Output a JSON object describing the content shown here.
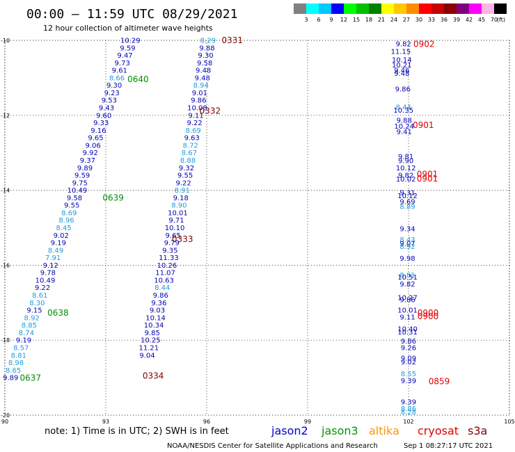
{
  "chart_data": {
    "type": "scatter",
    "title": "00:00 – 11:59 UTC 08/29/2021",
    "subtitle": "12 hour collection of altimeter wave heights",
    "xlim": [
      90,
      105
    ],
    "ylim": [
      -20,
      -10
    ],
    "x_ticks": [
      "90",
      "93",
      "96",
      "99",
      "102",
      "105"
    ],
    "y_ticks": [
      "-10",
      "-12",
      "-14",
      "-16",
      "-18",
      "-20"
    ],
    "colorbar": {
      "ticks": [
        "3",
        "6",
        "9",
        "12",
        "15",
        "18",
        "21",
        "24",
        "27",
        "30",
        "33",
        "36",
        "39",
        "42",
        "45",
        "70"
      ],
      "unit": "(ft)",
      "colors": [
        "#808080",
        "#00ffff",
        "#00c8ff",
        "#0000ff",
        "#00ff00",
        "#00c000",
        "#008000",
        "#ffff00",
        "#ffc800",
        "#ff8c00",
        "#ff0000",
        "#c80000",
        "#8b0000",
        "#800080",
        "#ff00ff",
        "#ffb4e6",
        "#000000"
      ]
    },
    "series": [
      {
        "name": "jason3",
        "color_low": "#1e9bdc",
        "color_high": "#0000b4",
        "passes": [
          {
            "label": "0640",
            "x": 93.96,
            "y": -11.03
          },
          {
            "label": "0639",
            "x": 93.22,
            "y": -14.19
          },
          {
            "label": "0638",
            "x": 91.58,
            "y": -17.26
          },
          {
            "label": "0637",
            "x": 90.76,
            "y": -19.0
          }
        ],
        "points": [
          [
            93.73,
            -10.0,
            "10.29"
          ],
          [
            93.65,
            -10.2,
            "9.59"
          ],
          [
            93.57,
            -10.4,
            "9.47"
          ],
          [
            93.49,
            -10.6,
            "9.73"
          ],
          [
            93.41,
            -10.8,
            "9.61"
          ],
          [
            93.33,
            -11.0,
            "8.66"
          ],
          [
            93.25,
            -11.2,
            "9.30"
          ],
          [
            93.18,
            -11.4,
            "9.23"
          ],
          [
            93.1,
            -11.6,
            "9.53"
          ],
          [
            93.02,
            -11.8,
            "9.43"
          ],
          [
            92.94,
            -12.0,
            "9.60"
          ],
          [
            92.86,
            -12.2,
            "9.33"
          ],
          [
            92.78,
            -12.4,
            "9.16"
          ],
          [
            92.7,
            -12.6,
            "9.65"
          ],
          [
            92.62,
            -12.8,
            "9.06"
          ],
          [
            92.54,
            -13.0,
            "9.92"
          ],
          [
            92.46,
            -13.2,
            "9.37"
          ],
          [
            92.38,
            -13.4,
            "9.89"
          ],
          [
            92.3,
            -13.6,
            "9.59"
          ],
          [
            92.23,
            -13.8,
            "9.75"
          ],
          [
            92.15,
            -14.0,
            "10.49"
          ],
          [
            92.07,
            -14.2,
            "9.58"
          ],
          [
            91.99,
            -14.4,
            "9.55"
          ],
          [
            91.91,
            -14.6,
            "8.69"
          ],
          [
            91.83,
            -14.8,
            "8.96"
          ],
          [
            91.75,
            -15.0,
            "8.45"
          ],
          [
            91.67,
            -15.2,
            "9.02"
          ],
          [
            91.59,
            -15.4,
            "9.19"
          ],
          [
            91.51,
            -15.6,
            "8.49"
          ],
          [
            91.43,
            -15.8,
            "7.91"
          ],
          [
            91.36,
            -16.0,
            "9.12"
          ],
          [
            91.28,
            -16.2,
            "9.78"
          ],
          [
            91.2,
            -16.4,
            "10.49"
          ],
          [
            91.12,
            -16.6,
            "9.22"
          ],
          [
            91.04,
            -16.8,
            "8.61"
          ],
          [
            90.96,
            -17.0,
            "8.30"
          ],
          [
            90.88,
            -17.2,
            "9.15"
          ],
          [
            90.8,
            -17.4,
            "8.92"
          ],
          [
            90.72,
            -17.6,
            "8.85"
          ],
          [
            90.64,
            -17.8,
            "8.74"
          ],
          [
            90.56,
            -18.0,
            "9.19"
          ],
          [
            90.48,
            -18.2,
            "8.57"
          ],
          [
            90.41,
            -18.4,
            "8.81"
          ],
          [
            90.33,
            -18.6,
            "8.98"
          ],
          [
            90.25,
            -18.8,
            "8.65"
          ],
          [
            90.17,
            -19.0,
            "9.89"
          ]
        ]
      },
      {
        "name": "cryosat",
        "color_low": "#1e9bdc",
        "color_high": "#0000b4",
        "passes": [
          {
            "label": "0331",
            "x": 96.76,
            "y": -9.99
          },
          {
            "label": "0332",
            "x": 96.1,
            "y": -11.87
          },
          {
            "label": "0333",
            "x": 95.28,
            "y": -15.3
          },
          {
            "label": "0334",
            "x": 94.41,
            "y": -18.94
          }
        ],
        "points": [
          [
            96.04,
            -10.0,
            "8.29"
          ],
          [
            96.01,
            -10.2,
            "9.88"
          ],
          [
            95.97,
            -10.4,
            "9.30"
          ],
          [
            95.94,
            -10.6,
            "9.58"
          ],
          [
            95.9,
            -10.8,
            "9.48"
          ],
          [
            95.87,
            -11.0,
            "9.48"
          ],
          [
            95.83,
            -11.2,
            "8.94"
          ],
          [
            95.79,
            -11.4,
            "9.01"
          ],
          [
            95.76,
            -11.6,
            "9.86"
          ],
          [
            95.72,
            -11.8,
            "10.08"
          ],
          [
            95.68,
            -12.0,
            "9.11"
          ],
          [
            95.64,
            -12.2,
            "9.22"
          ],
          [
            95.6,
            -12.4,
            "8.69"
          ],
          [
            95.56,
            -12.6,
            "9.63"
          ],
          [
            95.52,
            -12.8,
            "8.72"
          ],
          [
            95.48,
            -13.0,
            "8.67"
          ],
          [
            95.44,
            -13.2,
            "8.88"
          ],
          [
            95.4,
            -13.4,
            "9.32"
          ],
          [
            95.36,
            -13.6,
            "9.55"
          ],
          [
            95.31,
            -13.8,
            "9.22"
          ],
          [
            95.27,
            -14.0,
            "8.91"
          ],
          [
            95.23,
            -14.2,
            "9.18"
          ],
          [
            95.18,
            -14.4,
            "8.90"
          ],
          [
            95.14,
            -14.6,
            "10.01"
          ],
          [
            95.1,
            -14.8,
            "9.71"
          ],
          [
            95.05,
            -15.0,
            "10.10"
          ],
          [
            95.0,
            -15.2,
            "9.65"
          ],
          [
            94.96,
            -15.4,
            "9.79"
          ],
          [
            94.91,
            -15.6,
            "9.35"
          ],
          [
            94.87,
            -15.8,
            "11.33"
          ],
          [
            94.82,
            -16.0,
            "10.26"
          ],
          [
            94.77,
            -16.2,
            "11.07"
          ],
          [
            94.73,
            -16.4,
            "10.63"
          ],
          [
            94.68,
            -16.6,
            "8.44"
          ],
          [
            94.63,
            -16.8,
            "9.86"
          ],
          [
            94.58,
            -17.0,
            "9.36"
          ],
          [
            94.53,
            -17.2,
            "9.03"
          ],
          [
            94.48,
            -17.4,
            "10.14"
          ],
          [
            94.43,
            -17.6,
            "10.34"
          ],
          [
            94.38,
            -17.8,
            "9.85"
          ],
          [
            94.33,
            -18.0,
            "10.25"
          ],
          [
            94.28,
            -18.2,
            "11.21"
          ],
          [
            94.23,
            -18.4,
            "9.04"
          ]
        ]
      },
      {
        "name": "s3a",
        "color_low": "#1e9bdc",
        "color_high": "#0000b4",
        "passes": [
          {
            "label": "0902",
            "x": 102.46,
            "y": -10.09
          },
          {
            "label": "0901",
            "x": 102.44,
            "y": -12.25
          },
          {
            "label": "0901",
            "x": 102.56,
            "y": -13.56
          },
          {
            "label": "0901",
            "x": 102.56,
            "y": -13.68
          },
          {
            "label": "0900",
            "x": 102.58,
            "y": -17.26
          },
          {
            "label": "0900",
            "x": 102.58,
            "y": -17.36
          },
          {
            "label": "0859",
            "x": 102.91,
            "y": -19.09
          }
        ],
        "points": [
          [
            101.85,
            -10.09,
            "9.82"
          ],
          [
            101.77,
            -10.3,
            "11.15"
          ],
          [
            101.8,
            -10.52,
            "10.14"
          ],
          [
            101.8,
            -10.66,
            "10.21"
          ],
          [
            101.8,
            -10.8,
            "9.46"
          ],
          [
            101.8,
            -10.88,
            "9.48"
          ],
          [
            101.83,
            -11.3,
            "9.86"
          ],
          [
            101.85,
            -11.78,
            "8.44"
          ],
          [
            101.85,
            -11.86,
            "10.35"
          ],
          [
            101.87,
            -12.13,
            "9.88"
          ],
          [
            101.87,
            -12.29,
            "10.24"
          ],
          [
            101.87,
            -12.44,
            "9.41"
          ],
          [
            101.92,
            -13.1,
            "9.81"
          ],
          [
            101.92,
            -13.21,
            "9.90"
          ],
          [
            101.92,
            -13.4,
            "10.12"
          ],
          [
            101.92,
            -13.6,
            "9.82"
          ],
          [
            101.92,
            -13.7,
            "10.02"
          ],
          [
            101.97,
            -14.06,
            "9.31"
          ],
          [
            101.97,
            -14.15,
            "10.12"
          ],
          [
            101.97,
            -14.3,
            "9.69"
          ],
          [
            101.97,
            -14.43,
            "8.89"
          ],
          [
            101.97,
            -15.03,
            "9.34"
          ],
          [
            101.97,
            -15.32,
            "8.43"
          ],
          [
            101.97,
            -15.42,
            "9.07"
          ],
          [
            101.97,
            -15.5,
            "8.92"
          ],
          [
            101.97,
            -15.82,
            "9.98"
          ],
          [
            101.97,
            -16.26,
            "8.81"
          ],
          [
            101.97,
            -16.32,
            "10.51"
          ],
          [
            101.97,
            -16.5,
            "9.82"
          ],
          [
            101.97,
            -16.86,
            "10.27"
          ],
          [
            101.97,
            -16.92,
            "9.86"
          ],
          [
            101.97,
            -17.2,
            "10.01"
          ],
          [
            101.97,
            -17.38,
            "9.11"
          ],
          [
            101.97,
            -17.7,
            "10.40"
          ],
          [
            101.97,
            -17.78,
            "10.31"
          ],
          [
            102.0,
            -18.02,
            "9.86"
          ],
          [
            102.0,
            -18.2,
            "9.26"
          ],
          [
            102.0,
            -18.48,
            "9.09"
          ],
          [
            102.0,
            -18.58,
            "9.02"
          ],
          [
            102.0,
            -18.9,
            "8.55"
          ],
          [
            102.0,
            -19.08,
            "9.39"
          ],
          [
            102.0,
            -19.65,
            "9.39"
          ],
          [
            102.0,
            -19.82,
            "8.86"
          ],
          [
            102.0,
            -19.92,
            "8.28"
          ]
        ]
      }
    ],
    "note": "note:  1) Time is in UTC;  2) SWH is in feet",
    "legend": [
      {
        "name": "jason2",
        "color": "#0000c8"
      },
      {
        "name": "jason3",
        "color": "#009600"
      },
      {
        "name": "altika",
        "color": "#ff9600"
      },
      {
        "name": "cryosat",
        "color": "#e10000"
      },
      {
        "name": "s3a",
        "color": "#800000"
      }
    ],
    "footer_left": "NOAA/NESDIS Center for Satellite Applications and Research",
    "footer_right": "Sep  1 08:27:17 UTC 2021",
    "grid": true
  }
}
